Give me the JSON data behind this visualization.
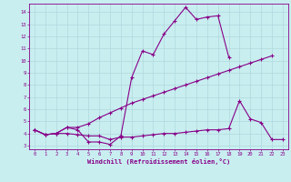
{
  "xlabel": "Windchill (Refroidissement éolien,°C)",
  "x_ticks": [
    0,
    1,
    2,
    3,
    4,
    5,
    6,
    7,
    8,
    9,
    10,
    11,
    12,
    13,
    14,
    15,
    16,
    17,
    18,
    19,
    20,
    21,
    22,
    23
  ],
  "y_ticks": [
    3,
    4,
    5,
    6,
    7,
    8,
    9,
    10,
    11,
    12,
    13,
    14
  ],
  "xlim": [
    -0.5,
    23.5
  ],
  "ylim": [
    2.7,
    14.7
  ],
  "background_color": "#c8eef0",
  "line_color": "#880088",
  "grid_color": "#b0d8dc",
  "line1_x": [
    0,
    1,
    2,
    3,
    4,
    5,
    6,
    7,
    8,
    9,
    10,
    11,
    12,
    13,
    14,
    15,
    16,
    17,
    18
  ],
  "line1_y": [
    4.3,
    3.9,
    4.0,
    4.5,
    4.3,
    3.3,
    3.3,
    3.1,
    3.8,
    8.6,
    10.8,
    10.5,
    12.2,
    13.3,
    14.4,
    13.4,
    13.6,
    13.7,
    10.3
  ],
  "line2_x": [
    0,
    1,
    2,
    3,
    4,
    5,
    6,
    7,
    8,
    9,
    10,
    11,
    12,
    13,
    14,
    15,
    16,
    17,
    18,
    19,
    20,
    21,
    22,
    23
  ],
  "line2_y": [
    4.3,
    3.9,
    4.0,
    4.5,
    4.5,
    4.8,
    5.3,
    5.7,
    6.1,
    6.5,
    6.8,
    7.1,
    7.4,
    7.7,
    8.0,
    8.3,
    8.6,
    8.9,
    9.2,
    9.5,
    9.8,
    10.1,
    10.4,
    null
  ],
  "line3_x": [
    0,
    1,
    2,
    3,
    4,
    5,
    6,
    7,
    8,
    9,
    10,
    11,
    12,
    13,
    14,
    15,
    16,
    17,
    18,
    19,
    20,
    21,
    22,
    23
  ],
  "line3_y": [
    4.3,
    3.9,
    4.0,
    4.0,
    3.9,
    3.8,
    3.8,
    3.5,
    3.7,
    3.7,
    3.8,
    3.9,
    4.0,
    4.0,
    4.1,
    4.2,
    4.3,
    4.3,
    4.4,
    6.7,
    5.2,
    4.9,
    3.5,
    3.5
  ]
}
